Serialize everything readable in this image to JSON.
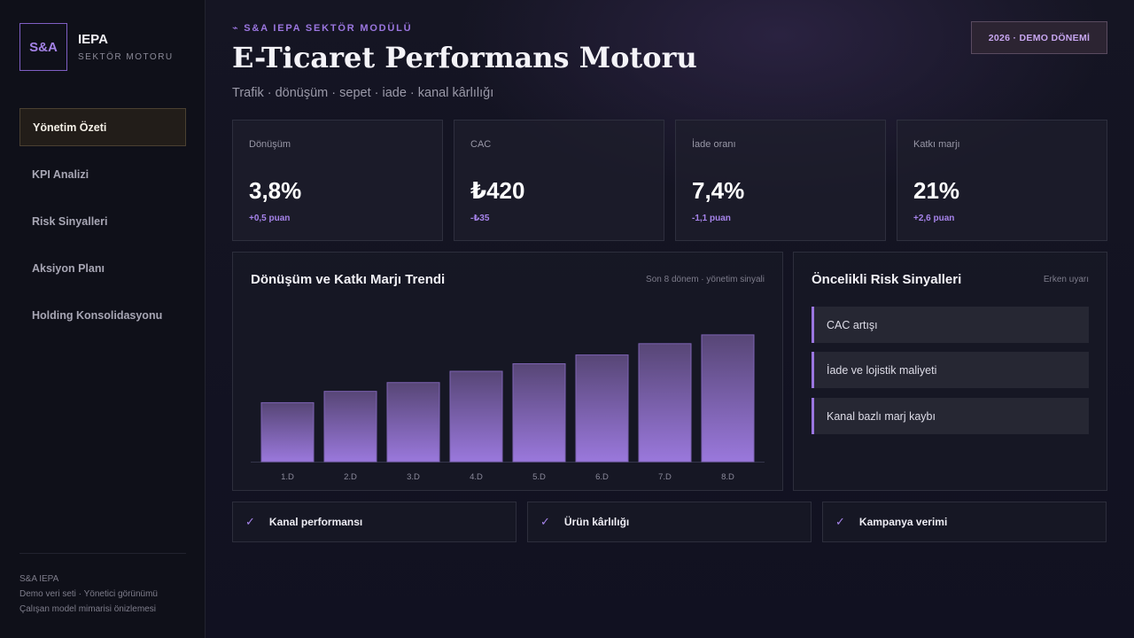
{
  "sidebar": {
    "logo": "S&A",
    "title": "IEPA",
    "subtitle": "SEKTÖR MOTORU",
    "nav": [
      {
        "label": "Yönetim Özeti",
        "active": true
      },
      {
        "label": "KPI Analizi",
        "active": false
      },
      {
        "label": "Risk Sinyalleri",
        "active": false
      },
      {
        "label": "Aksiyon Planı",
        "active": false
      },
      {
        "label": "Holding Konsolidasyonu",
        "active": false
      }
    ],
    "footer": [
      "S&A IEPA",
      "Demo veri seti · Yönetici görünümü",
      "Çalışan model mimarisi önizlemesi"
    ]
  },
  "header": {
    "kicker": "⌁ S&A IEPA SEKTÖR MODÜLÜ",
    "title": "E-Ticaret Performans Motoru",
    "subtitle": "Trafik · dönüşüm · sepet · iade · kanal kârlılığı",
    "period_badge": "2026 · DEMO DÖNEMİ"
  },
  "kpis": [
    {
      "label": "Dönüşüm",
      "value": "3,8%",
      "delta": "+0,5 puan"
    },
    {
      "label": "CAC",
      "value": "₺420",
      "delta": "-₺35"
    },
    {
      "label": "İade oranı",
      "value": "7,4%",
      "delta": "-1,1 puan"
    },
    {
      "label": "Katkı marjı",
      "value": "21%",
      "delta": "+2,6 puan"
    }
  ],
  "trend_panel": {
    "title": "Dönüşüm ve Katkı Marjı Trendi",
    "note": "Son 8 dönem · yönetim sinyali"
  },
  "chart_data": {
    "type": "bar",
    "categories": [
      "1.D",
      "2.D",
      "3.D",
      "4.D",
      "5.D",
      "6.D",
      "7.D",
      "8.D"
    ],
    "values": [
      47,
      56,
      63,
      72,
      78,
      85,
      94,
      101
    ],
    "ylim": [
      0,
      120
    ],
    "grid": false,
    "bar_color_top": "#574676",
    "bar_color_bottom": "#9a78dc"
  },
  "risk_panel": {
    "title": "Öncelikli Risk Sinyalleri",
    "note": "Erken uyarı",
    "items": [
      "CAC artışı",
      "İade ve lojistik maliyeti",
      "Kanal bazlı marj kaybı"
    ]
  },
  "chips": [
    {
      "check": "✓",
      "label": "Kanal performansı"
    },
    {
      "check": "✓",
      "label": "Ürün kârlılığı"
    },
    {
      "check": "✓",
      "label": "Kampanya verimi"
    }
  ],
  "colors": {
    "accent": "#9b76e0",
    "active_nav_bg": "#221d19"
  }
}
